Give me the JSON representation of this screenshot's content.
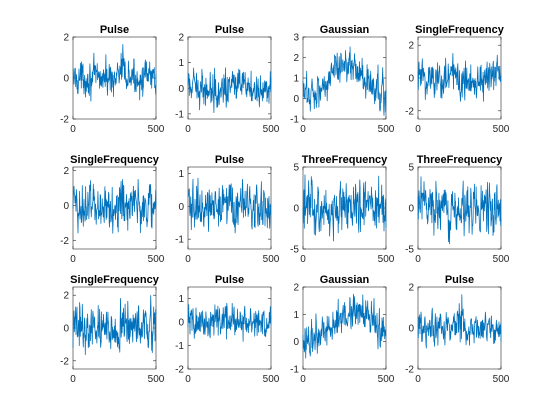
{
  "chart_data": [
    {
      "type": "line",
      "title": "Pulse",
      "x_range": [
        0,
        500
      ],
      "ylim": [
        -2,
        2
      ],
      "x_ticks": [
        0,
        500
      ],
      "y_ticks": [
        -2,
        0,
        2
      ],
      "series": [
        {
          "color": "#0072BD",
          "noise_amp": 0.55,
          "pulse": {
            "center": 290,
            "width": 40,
            "amp": 0.9
          }
        }
      ]
    },
    {
      "type": "line",
      "title": "Pulse",
      "x_range": [
        0,
        500
      ],
      "ylim": [
        -1.2,
        2
      ],
      "x_ticks": [
        0,
        500
      ],
      "y_ticks": [
        -1,
        0,
        1,
        2
      ],
      "series": [
        {
          "color": "#0072BD",
          "noise_amp": 0.45,
          "pulse": {
            "center": 230,
            "width": 25,
            "amp": 0.9
          }
        }
      ]
    },
    {
      "type": "line",
      "title": "Gaussian",
      "x_range": [
        0,
        500
      ],
      "ylim": [
        -1,
        3
      ],
      "x_ticks": [
        0,
        500
      ],
      "y_ticks": [
        -1,
        0,
        1,
        2,
        3
      ],
      "series": [
        {
          "color": "#0072BD",
          "noise_amp": 0.6,
          "trend": {
            "center": 260,
            "width": 120,
            "amp": 1.6,
            "base": 0.2
          }
        }
      ]
    },
    {
      "type": "line",
      "title": "SingleFrequency",
      "x_range": [
        0,
        500
      ],
      "ylim": [
        -2.5,
        2.5
      ],
      "x_ticks": [
        0,
        500
      ],
      "y_ticks": [
        -2,
        0,
        2
      ],
      "series": [
        {
          "color": "#0072BD",
          "noise_amp": 0.9
        }
      ]
    },
    {
      "type": "line",
      "title": "SingleFrequency",
      "x_range": [
        0,
        500
      ],
      "ylim": [
        -2.5,
        2.2
      ],
      "x_ticks": [
        0,
        500
      ],
      "y_ticks": [
        -2,
        0,
        2
      ],
      "series": [
        {
          "color": "#0072BD",
          "noise_amp": 0.95
        }
      ]
    },
    {
      "type": "line",
      "title": "Pulse",
      "x_range": [
        0,
        500
      ],
      "ylim": [
        -1.3,
        1.2
      ],
      "x_ticks": [
        0,
        500
      ],
      "y_ticks": [
        -1,
        0,
        1
      ],
      "series": [
        {
          "color": "#0072BD",
          "noise_amp": 0.45,
          "pulse": {
            "center": 230,
            "width": 25,
            "amp": 0.6
          }
        }
      ]
    },
    {
      "type": "line",
      "title": "ThreeFrequency",
      "x_range": [
        0,
        500
      ],
      "ylim": [
        -5,
        5
      ],
      "x_ticks": [
        0,
        500
      ],
      "y_ticks": [
        -5,
        0,
        5
      ],
      "series": [
        {
          "color": "#0072BD",
          "noise_amp": 2.1
        }
      ]
    },
    {
      "type": "line",
      "title": "ThreeFrequency",
      "x_range": [
        0,
        500
      ],
      "ylim": [
        -5,
        5
      ],
      "x_ticks": [
        0,
        500
      ],
      "y_ticks": [
        -5,
        0,
        5
      ],
      "series": [
        {
          "color": "#0072BD",
          "noise_amp": 2.0
        }
      ]
    },
    {
      "type": "line",
      "title": "SingleFrequency",
      "x_range": [
        0,
        500
      ],
      "ylim": [
        -2.5,
        2.5
      ],
      "x_ticks": [
        0,
        500
      ],
      "y_ticks": [
        -2,
        0,
        2
      ],
      "series": [
        {
          "color": "#0072BD",
          "noise_amp": 0.95
        }
      ]
    },
    {
      "type": "line",
      "title": "Pulse",
      "x_range": [
        0,
        500
      ],
      "ylim": [
        -2,
        1.5
      ],
      "x_ticks": [
        0,
        500
      ],
      "y_ticks": [
        -2,
        -1,
        0,
        1
      ],
      "series": [
        {
          "color": "#0072BD",
          "noise_amp": 0.45,
          "pulse": {
            "center": 230,
            "width": 20,
            "amp": 0.9
          }
        }
      ]
    },
    {
      "type": "line",
      "title": "Gaussian",
      "x_range": [
        0,
        500
      ],
      "ylim": [
        -1,
        2
      ],
      "x_ticks": [
        0,
        500
      ],
      "y_ticks": [
        -1,
        0,
        1,
        2
      ],
      "series": [
        {
          "color": "#0072BD",
          "noise_amp": 0.45,
          "trend": {
            "center": 330,
            "width": 160,
            "amp": 1.1,
            "base": 0.1
          }
        }
      ]
    },
    {
      "type": "line",
      "title": "Pulse",
      "x_range": [
        0,
        500
      ],
      "ylim": [
        -2,
        2
      ],
      "x_ticks": [
        0,
        500
      ],
      "y_ticks": [
        -2,
        0,
        2
      ],
      "series": [
        {
          "color": "#0072BD",
          "noise_amp": 0.5,
          "pulse": {
            "center": 260,
            "width": 30,
            "amp": 0.9
          }
        }
      ]
    }
  ]
}
